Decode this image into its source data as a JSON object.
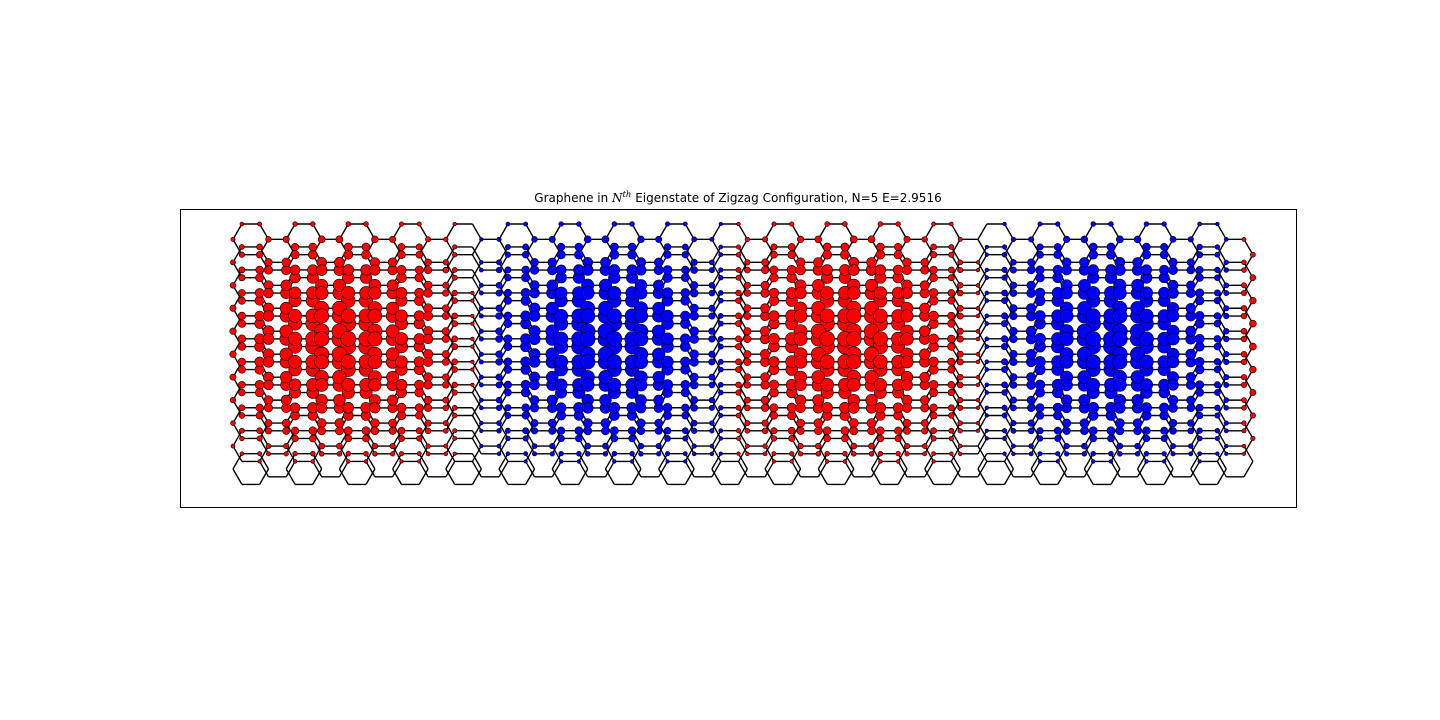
{
  "chart_data": {
    "type": "scatter",
    "title": {
      "prefix": "Graphene in ",
      "math_base": "N",
      "math_sup": "th",
      "suffix": " Eigenstate of Zigzag Configuration, N=5 E=2.9516"
    },
    "xlabel": "",
    "ylabel": "",
    "axes_ticks_visible": false,
    "grid": false,
    "lattice": {
      "structure": "graphene honeycomb, zigzag ribbon",
      "bond_color": "#000000",
      "hexagon_columns": 38,
      "hexagon_rows": 11
    },
    "series": [
      {
        "values_sign": "positive",
        "color": "#ff0000",
        "lobes": [
          {
            "center_column": 4.3,
            "center_row": 5.0
          },
          {
            "center_column": 23.0,
            "center_row": 5.0
          }
        ]
      },
      {
        "values_sign": "negative",
        "color": "#0000ff",
        "lobes": [
          {
            "center_column": 13.8,
            "center_row": 5.0
          },
          {
            "center_column": 33.2,
            "center_row": 5.0
          }
        ]
      }
    ],
    "amplitude_profile": {
      "x_wavelength_columns": 9.55,
      "y_envelope": "sine across ribbon width, maximum at center row"
    }
  }
}
